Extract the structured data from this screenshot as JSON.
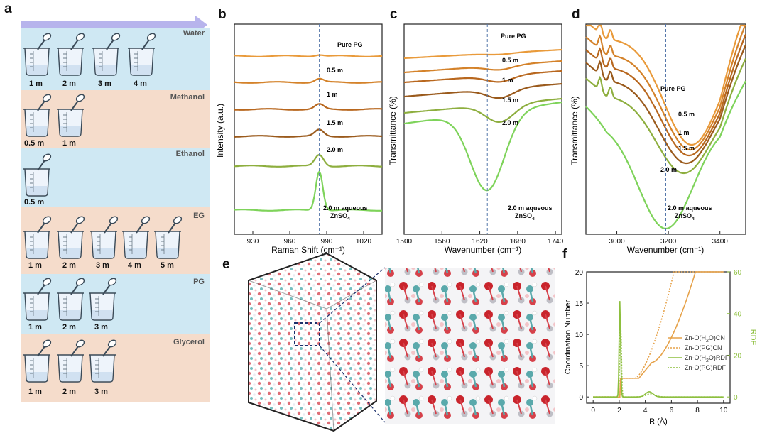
{
  "panel_labels": {
    "a": "a",
    "b": "b",
    "c": "c",
    "d": "d",
    "e": "e",
    "f": "f"
  },
  "colors": {
    "blue_band": "#cfe8f3",
    "peach_band": "#f5dccb",
    "arrow": "#a9a6e6",
    "accent_green": "#7cbc3c",
    "orange": "#d98a2b"
  },
  "panel_a": {
    "groups": [
      {
        "name": "Water",
        "concs": [
          "1 m",
          "2 m",
          "3 m",
          "4 m"
        ]
      },
      {
        "name": "Methanol",
        "concs": [
          "0.5 m",
          "1 m"
        ]
      },
      {
        "name": "Ethanol",
        "concs": [
          "0.5 m"
        ]
      },
      {
        "name": "EG",
        "concs": [
          "1 m",
          "2 m",
          "3 m",
          "4 m",
          "5 m"
        ]
      },
      {
        "name": "PG",
        "concs": [
          "1 m",
          "2 m",
          "3 m"
        ]
      },
      {
        "name": "Glycerol",
        "concs": [
          "1 m",
          "2 m",
          "3 m"
        ]
      }
    ]
  },
  "chart_data": [
    {
      "id": "b",
      "type": "line",
      "title": "",
      "xlabel": "Raman Shift (cm⁻¹)",
      "ylabel": "Intensity (a.u.)",
      "xlim": [
        915,
        1035
      ],
      "xticks": [
        "930",
        "960",
        "990",
        "1020"
      ],
      "marker_x": 984,
      "series": [
        {
          "name": "Pure PG",
          "label": "Pure PG",
          "color": "#e99a3a"
        },
        {
          "name": "0.5 m",
          "label": "0.5 m",
          "color": "#d4822a"
        },
        {
          "name": "1 m",
          "label": "1 m",
          "color": "#b8671e"
        },
        {
          "name": "1.5 m",
          "label": "1.5 m",
          "color": "#9a5a1c"
        },
        {
          "name": "2.0 m",
          "label": "2.0 m",
          "color": "#8dae3e"
        },
        {
          "name": "2.0 m aqueous ZnSO4",
          "label": "2.0 m aqueous",
          "label2": "ZnSO",
          "sub": "4",
          "color": "#7ed35a"
        }
      ]
    },
    {
      "id": "c",
      "type": "line",
      "title": "",
      "xlabel": "Wavenumber (cm⁻¹)",
      "ylabel": "Transmittance (%)",
      "xlim": [
        1500,
        1750
      ],
      "xticks": [
        "1500",
        "1560",
        "1620",
        "1680",
        "1740"
      ],
      "marker_x": 1632,
      "series": [
        {
          "name": "Pure PG",
          "label": "Pure PG",
          "color": "#e99a3a"
        },
        {
          "name": "0.5 m",
          "label": "0.5 m",
          "color": "#d4822a"
        },
        {
          "name": "1 m",
          "label": "1 m",
          "color": "#b8671e"
        },
        {
          "name": "1.5 m",
          "label": "1.5 m",
          "color": "#9a5a1c"
        },
        {
          "name": "2.0 m",
          "label": "2.0 m",
          "color": "#8dae3e"
        },
        {
          "name": "2.0 m aqueous ZnSO4",
          "label": "2.0 m aqueous",
          "label2": "ZnSO",
          "sub": "4",
          "color": "#7ed35a"
        }
      ]
    },
    {
      "id": "d",
      "type": "line",
      "title": "",
      "xlabel": "Wavenumber (cm⁻¹)",
      "ylabel": "Transmittance (%)",
      "xlim": [
        2880,
        3500
      ],
      "xticks": [
        "3000",
        "3200",
        "3400"
      ],
      "marker_x": 3190,
      "series": [
        {
          "name": "Pure PG",
          "label": "Pure PG",
          "color": "#e99a3a"
        },
        {
          "name": "0.5 m",
          "label": "0.5 m",
          "color": "#d4822a"
        },
        {
          "name": "1 m",
          "label": "1 m",
          "color": "#b8671e"
        },
        {
          "name": "1.5 m",
          "label": "1.5 m",
          "color": "#9a5a1c"
        },
        {
          "name": "2.0 m",
          "label": "2.0 m",
          "color": "#8dae3e"
        },
        {
          "name": "2.0 m aqueous ZnSO4",
          "label": "2.0 m aqueous",
          "label2": "ZnSO",
          "sub": "4",
          "color": "#7ed35a"
        }
      ]
    },
    {
      "id": "f",
      "type": "line",
      "title": "",
      "xlabel": "R (Å)",
      "ylabel": "Coordination Number",
      "y2label": "RDF",
      "xlim": [
        -0.5,
        10.5
      ],
      "xticks": [
        "0",
        "2",
        "4",
        "6",
        "8",
        "10"
      ],
      "ylim": [
        -1,
        20
      ],
      "yticks": [
        "0",
        "5",
        "10",
        "15",
        "20"
      ],
      "y2lim": [
        -3,
        60
      ],
      "y2ticks": [
        "0",
        "20",
        "40",
        "60"
      ],
      "series": [
        {
          "name": "Zn-O(H2O)CN",
          "label": "Zn-O(H",
          "sub": "2",
          "label_tail": "O)CN",
          "style": "solid",
          "color": "#e6a24a"
        },
        {
          "name": "Zn-O(PG)CN",
          "label": "Zn-O(PG)CN",
          "style": "dotted",
          "color": "#e6a24a"
        },
        {
          "name": "Zn-O(H2O)RDF",
          "label": "Zn-O(H",
          "sub": "2",
          "label_tail": "O)RDF",
          "style": "solid",
          "color": "#8dbf3e"
        },
        {
          "name": "Zn-O(PG)RDF",
          "label": "Zn-O(PG)RDF",
          "style": "dotted",
          "color": "#8dbf3e"
        }
      ]
    }
  ]
}
